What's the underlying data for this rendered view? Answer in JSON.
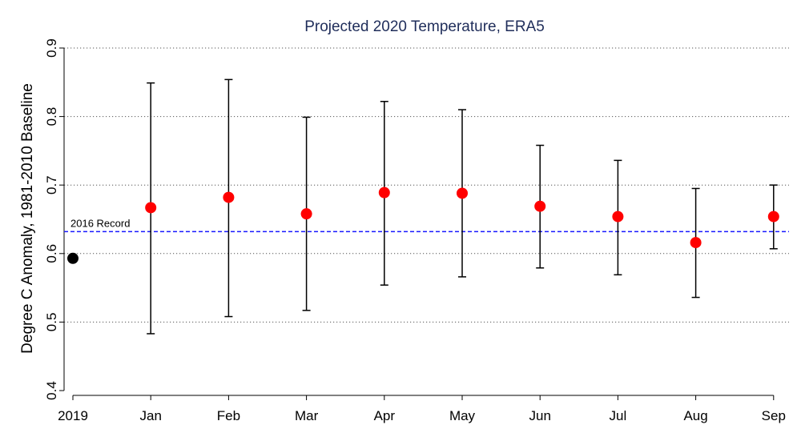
{
  "chart_data": {
    "type": "scatter",
    "title": "Projected 2020 Temperature, ERA5",
    "xlabel": "",
    "ylabel": "Degree C Anomaly, 1981-2010 Baseline",
    "ylim": [
      0.4,
      0.9
    ],
    "yticks": [
      "0.4",
      "0.5",
      "0.6",
      "0.7",
      "0.8",
      "0.9"
    ],
    "grid": true,
    "categories": [
      "2019",
      "Jan",
      "Feb",
      "Mar",
      "Apr",
      "May",
      "Jun",
      "Jul",
      "Aug",
      "Sep"
    ],
    "series": [
      {
        "point_color": "#000000",
        "points": [
          {
            "x": "2019",
            "y": 0.593
          }
        ]
      },
      {
        "point_color": "#ff0000",
        "points": [
          {
            "x": "Jan",
            "y": 0.667,
            "low": 0.483,
            "high": 0.849
          },
          {
            "x": "Feb",
            "y": 0.682,
            "low": 0.508,
            "high": 0.854
          },
          {
            "x": "Mar",
            "y": 0.658,
            "low": 0.517,
            "high": 0.799
          },
          {
            "x": "Apr",
            "y": 0.689,
            "low": 0.554,
            "high": 0.822
          },
          {
            "x": "May",
            "y": 0.688,
            "low": 0.566,
            "high": 0.81
          },
          {
            "x": "Jun",
            "y": 0.669,
            "low": 0.579,
            "high": 0.758
          },
          {
            "x": "Jul",
            "y": 0.654,
            "low": 0.569,
            "high": 0.736
          },
          {
            "x": "Aug",
            "y": 0.616,
            "low": 0.536,
            "high": 0.695
          },
          {
            "x": "Sep",
            "y": 0.654,
            "low": 0.607,
            "high": 0.7
          }
        ]
      }
    ],
    "reference_line": {
      "label": "2016 Record",
      "y": 0.632,
      "color": "#1a1aff"
    }
  }
}
